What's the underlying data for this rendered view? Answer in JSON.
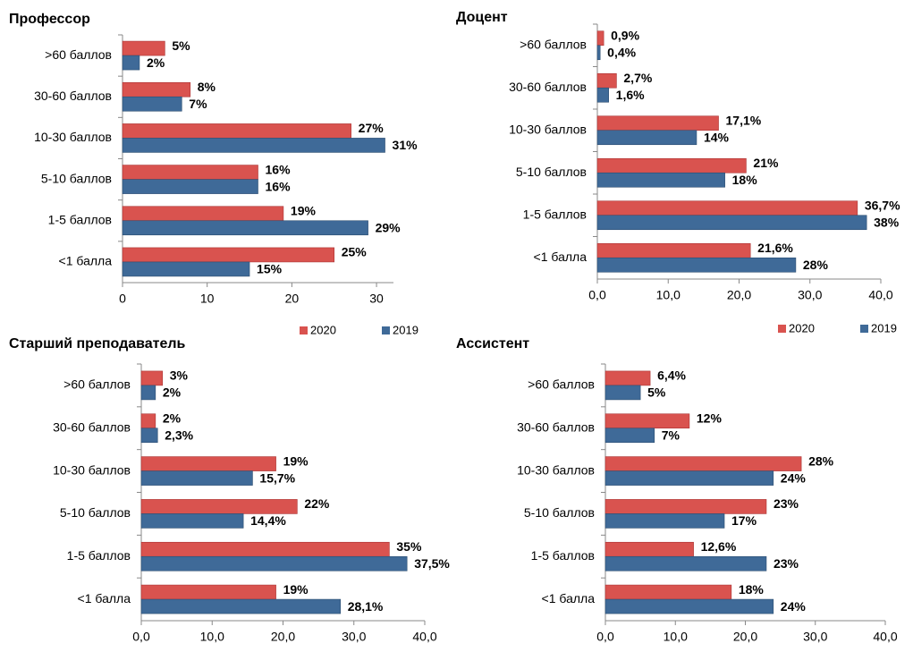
{
  "chart_data": [
    {
      "type": "bar",
      "orientation": "horizontal",
      "title": "Профессор",
      "categories": [
        ">60 баллов",
        "30-60 баллов",
        "10-30 баллов",
        "5-10 баллов",
        "1-5 баллов",
        "<1 балла"
      ],
      "series": [
        {
          "name": "2020",
          "color": "#d9534f",
          "values": [
            5,
            8,
            27,
            16,
            19,
            25
          ],
          "value_labels": [
            "5%",
            "8%",
            "27%",
            "16%",
            "19%",
            "25%"
          ]
        },
        {
          "name": "2019",
          "color": "#3f6a98",
          "values": [
            2,
            7,
            31,
            16,
            29,
            15
          ],
          "value_labels": [
            "2%",
            "7%",
            "31%",
            "16%",
            "29%",
            "15%"
          ]
        }
      ],
      "xlim": [
        0,
        32
      ],
      "xticks": [
        0,
        10,
        20,
        30
      ],
      "legend": "bottom-right"
    },
    {
      "type": "bar",
      "orientation": "horizontal",
      "title": "Доцент",
      "categories": [
        ">60 баллов",
        "30-60 баллов",
        "10-30 баллов",
        "5-10 баллов",
        "1-5 баллов",
        "<1 балла"
      ],
      "series": [
        {
          "name": "2020",
          "color": "#d9534f",
          "values": [
            0.9,
            2.7,
            17.1,
            21,
            36.7,
            21.6
          ],
          "value_labels": [
            "0,9%",
            "2,7%",
            "17,1%",
            "21%",
            "36,7%",
            "21,6%"
          ]
        },
        {
          "name": "2019",
          "color": "#3f6a98",
          "values": [
            0.4,
            1.6,
            14,
            18,
            38,
            28
          ],
          "value_labels": [
            "0,4%",
            "1,6%",
            "14%",
            "18%",
            "38%",
            "28%"
          ]
        }
      ],
      "xlim": [
        0,
        40
      ],
      "xticks": [
        {
          "value": 0,
          "label": "0,0"
        },
        {
          "value": 10,
          "label": "10,0"
        },
        {
          "value": 20,
          "label": "20,0"
        },
        {
          "value": 30,
          "label": "30,0"
        },
        {
          "value": 40,
          "label": "40,0"
        }
      ],
      "legend": "bottom-right"
    },
    {
      "type": "bar",
      "orientation": "horizontal",
      "title": "Старший преподаватель",
      "categories": [
        ">60 баллов",
        "30-60 баллов",
        "10-30 баллов",
        "5-10 баллов",
        "1-5 баллов",
        "<1 балла"
      ],
      "series": [
        {
          "color": "#d9534f",
          "values": [
            3,
            2,
            19,
            22,
            35,
            19
          ],
          "value_labels": [
            "3%",
            "2%",
            "19%",
            "22%",
            "35%",
            "19%"
          ]
        },
        {
          "color": "#3f6a98",
          "values": [
            2,
            2.3,
            15.7,
            14.4,
            37.5,
            28.1
          ],
          "value_labels": [
            "2%",
            "2,3%",
            "15,7%",
            "14,4%",
            "37,5%",
            "28,1%"
          ]
        }
      ],
      "xlim": [
        0,
        40
      ],
      "xticks": [
        {
          "value": 0,
          "label": "0,0"
        },
        {
          "value": 10,
          "label": "10,0"
        },
        {
          "value": 20,
          "label": "20,0"
        },
        {
          "value": 30,
          "label": "30,0"
        },
        {
          "value": 40,
          "label": "40,0"
        }
      ]
    },
    {
      "type": "bar",
      "orientation": "horizontal",
      "title": "Ассистент",
      "categories": [
        ">60 баллов",
        "30-60 баллов",
        "10-30 баллов",
        "5-10 баллов",
        "1-5 баллов",
        "<1 балла"
      ],
      "series": [
        {
          "color": "#d9534f",
          "values": [
            6.4,
            12,
            28,
            23,
            12.6,
            18
          ],
          "value_labels": [
            "6,4%",
            "12%",
            "28%",
            "23%",
            "12,6%",
            "18%"
          ]
        },
        {
          "color": "#3f6a98",
          "values": [
            5,
            7,
            24,
            17,
            23,
            24
          ],
          "value_labels": [
            "5%",
            "7%",
            "24%",
            "17%",
            "23%",
            "24%"
          ]
        }
      ],
      "xlim": [
        0,
        40
      ],
      "xticks": [
        {
          "value": 0,
          "label": "0,0"
        },
        {
          "value": 10,
          "label": "10,0"
        },
        {
          "value": 20,
          "label": "20,0"
        },
        {
          "value": 30,
          "label": "30,0"
        },
        {
          "value": 40,
          "label": "40,0"
        }
      ]
    }
  ]
}
